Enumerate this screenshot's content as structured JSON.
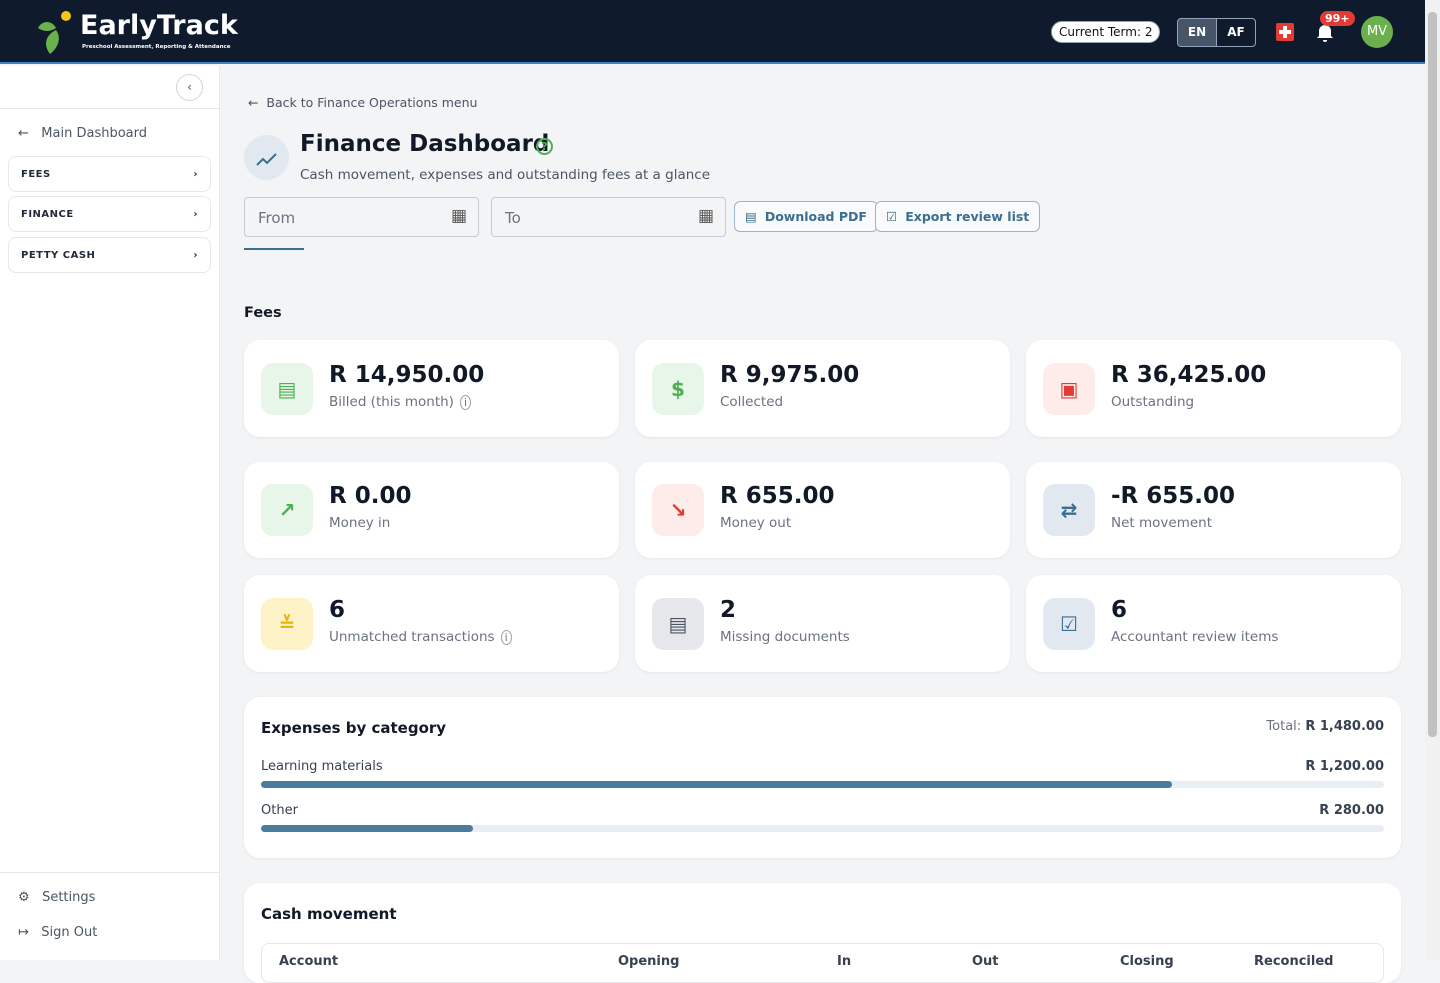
{
  "header": {
    "brand": "EarlyTrack",
    "tagline": "Preschool Assessment, Reporting & Attendance",
    "term": "Current Term: 2",
    "languages": [
      "EN",
      "AF"
    ],
    "notifications": "99+",
    "avatar": "MV"
  },
  "sidebar": {
    "back": "Main Dashboard",
    "menu": [
      "FEES",
      "FINANCE",
      "PETTY CASH"
    ],
    "footer": [
      "Settings",
      "Sign Out"
    ]
  },
  "page": {
    "back": "Back to Finance Operations menu",
    "title": "Finance Dashboard",
    "subtitle": "Cash movement, expenses and outstanding fees at a glance",
    "filters": {
      "from": "From",
      "to": "To"
    },
    "actions": [
      "Download PDF",
      "Export review list"
    ],
    "section": "Fees"
  },
  "cards": [
    {
      "value": "R 14,950.00",
      "label": "Billed (this month)"
    },
    {
      "value": "R 9,975.00",
      "label": "Collected"
    },
    {
      "value": "R 36,425.00",
      "label": "Outstanding"
    },
    {
      "value": "R 0.00",
      "label": "Money in"
    },
    {
      "value": "R 655.00",
      "label": "Money out"
    },
    {
      "value": "-R 655.00",
      "label": "Net movement"
    },
    {
      "value": "6",
      "label": "Unmatched transactions"
    },
    {
      "value": "2",
      "label": "Missing documents"
    },
    {
      "value": "6",
      "label": "Accountant review items"
    }
  ],
  "expenses": {
    "title": "Expenses by category",
    "total_label": "Total:",
    "total": {
      "value": 1480,
      "label": "R 1,480.00"
    },
    "items": [
      {
        "name": "Learning materials",
        "value": 1200,
        "label": "R 1,200.00"
      },
      {
        "name": "Other",
        "value": 280,
        "label": "R 280.00"
      }
    ]
  },
  "cash_movement": {
    "title": "Cash movement",
    "columns": [
      "Account",
      "Opening",
      "In",
      "Out",
      "Closing",
      "Reconciled"
    ]
  }
}
